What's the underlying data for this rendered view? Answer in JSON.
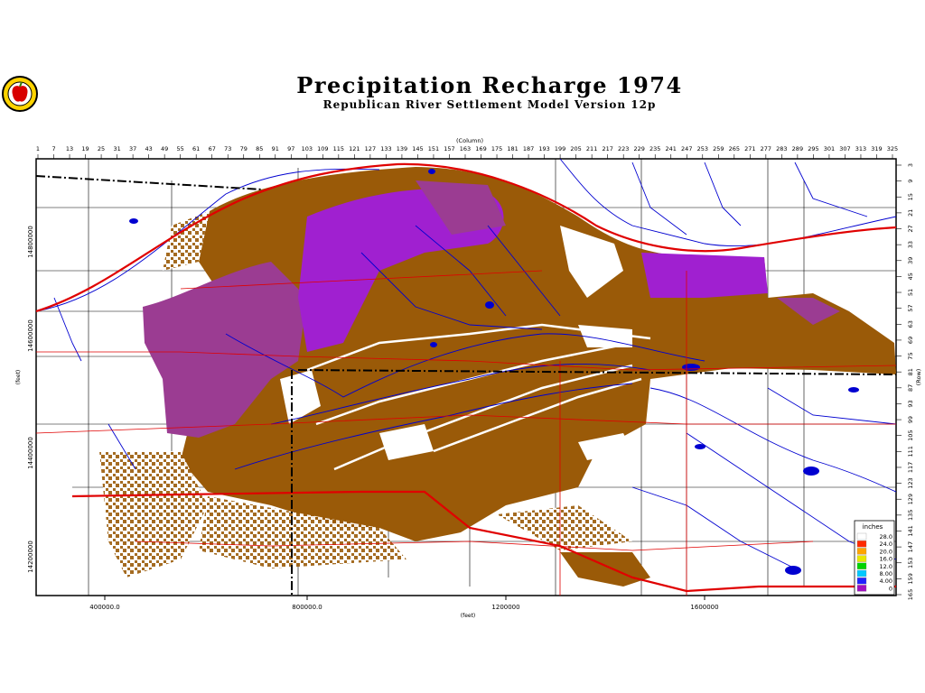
{
  "header": {
    "title": "Precipitation Recharge 1974",
    "subtitle": "Republican River Settlement Model Version 12p"
  },
  "logo": {
    "icon": "apple-seal-icon"
  },
  "map": {
    "top_axis_label": "(Column)",
    "column_ticks": [
      "1",
      "7",
      "13",
      "19",
      "25",
      "31",
      "37",
      "43",
      "49",
      "55",
      "61",
      "67",
      "73",
      "79",
      "85",
      "91",
      "97",
      "103",
      "109",
      "115",
      "121",
      "127",
      "133",
      "139",
      "145",
      "151",
      "157",
      "163",
      "169",
      "175",
      "181",
      "187",
      "193",
      "199",
      "205",
      "211",
      "217",
      "223",
      "229",
      "235",
      "241",
      "247",
      "253",
      "259",
      "265",
      "271",
      "277",
      "283",
      "289",
      "295",
      "301",
      "307",
      "313",
      "319",
      "325"
    ],
    "right_axis_label": "(Row)",
    "row_ticks": [
      "3",
      "9",
      "15",
      "21",
      "27",
      "33",
      "39",
      "45",
      "51",
      "57",
      "63",
      "69",
      "75",
      "81",
      "87",
      "93",
      "99",
      "105",
      "111",
      "117",
      "123",
      "129",
      "135",
      "141",
      "147",
      "153",
      "159",
      "165"
    ],
    "bottom_axis_label": "(feet)",
    "x_ticks": [
      "400000.0",
      "800000.0",
      "1200000",
      "1600000"
    ],
    "left_axis_label": "(feet)",
    "y_ticks": [
      "14800000",
      "14600000",
      "14400000",
      "14200000"
    ]
  },
  "legend": {
    "title": "inches",
    "entries": [
      {
        "label": "28.0",
        "color": "#ffffff"
      },
      {
        "label": "24.0",
        "color": "#ff2a00"
      },
      {
        "label": "20.0",
        "color": "#ffa500"
      },
      {
        "label": "16.0",
        "color": "#e8e800"
      },
      {
        "label": "12.0",
        "color": "#00d400"
      },
      {
        "label": "8.00",
        "color": "#00c8ff"
      },
      {
        "label": "4.00",
        "color": "#2020ff"
      },
      {
        "label": "0",
        "color": "#a010c0"
      }
    ]
  },
  "colors": {
    "recharge_low": "#9a5a08",
    "recharge_mid": "#9b3c92",
    "recharge_high": "#a020d0",
    "rivers": "#0000d0",
    "highways": "#e00000"
  }
}
